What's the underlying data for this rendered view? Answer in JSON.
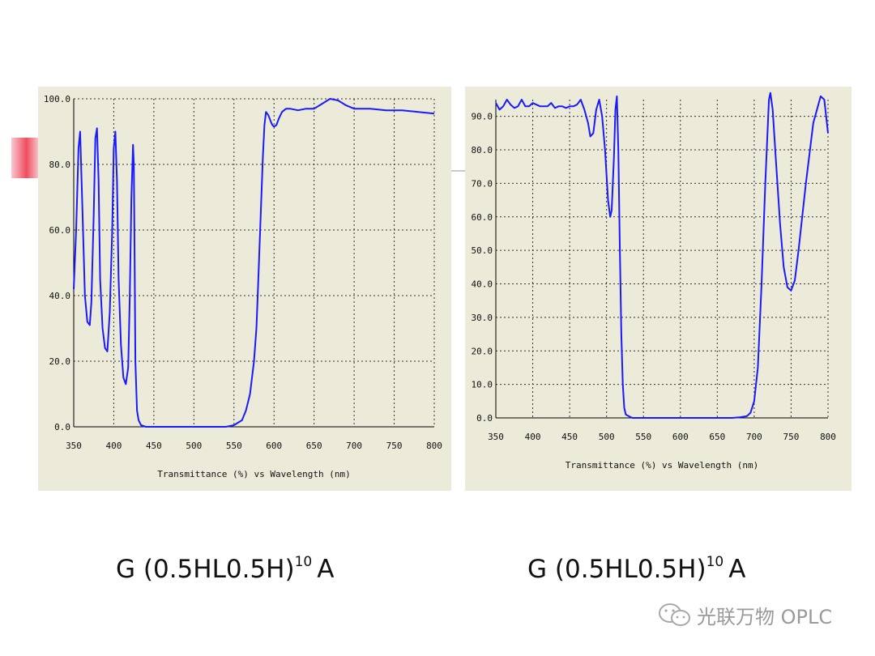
{
  "captions": {
    "left": {
      "main": "G (0.5HL0.5H)",
      "sup": "10",
      "tail": "A"
    },
    "right": {
      "main": "G (0.5HL0.5H)",
      "sup": "10",
      "tail": "A"
    }
  },
  "watermark": {
    "text": "光联万物 OPLC",
    "icon": "wechat-icon"
  },
  "chart_data": [
    {
      "type": "line",
      "xlabel": "Transmittance (%)  vs  Wavelength (nm)",
      "ylabel": "",
      "xlim": [
        350,
        800
      ],
      "ylim": [
        0,
        100
      ],
      "x_ticks": [
        "350",
        "400",
        "450",
        "500",
        "550",
        "600",
        "650",
        "700",
        "750",
        "800"
      ],
      "y_ticks": [
        "0.0",
        "20.0",
        "40.0",
        "60.0",
        "80.0",
        "100.0"
      ],
      "grid": true,
      "line_color": "#1a1aff",
      "series": [
        {
          "x": [
            350,
            353,
            356,
            358,
            361,
            364,
            367,
            370,
            372,
            375,
            377,
            379,
            381,
            383,
            386,
            389,
            392,
            395,
            398,
            400,
            402,
            404,
            406,
            409,
            412,
            415,
            418,
            420,
            422,
            424,
            425,
            426,
            427,
            429,
            431,
            434,
            440,
            450,
            500,
            540,
            550,
            560,
            565,
            570,
            575,
            578,
            580,
            583,
            586,
            588,
            590,
            593,
            596,
            598,
            600,
            603,
            606,
            610,
            615,
            620,
            630,
            640,
            650,
            660,
            670,
            680,
            690,
            700,
            720,
            740,
            760,
            780,
            800
          ],
          "y": [
            42,
            60,
            85,
            90,
            65,
            40,
            32,
            31,
            38,
            65,
            88,
            91,
            75,
            45,
            30,
            24,
            23,
            35,
            60,
            85,
            90,
            75,
            45,
            25,
            15,
            13,
            18,
            40,
            70,
            86,
            80,
            50,
            20,
            5,
            2,
            0.5,
            0,
            0,
            0,
            0,
            0.5,
            2,
            5,
            10,
            20,
            30,
            42,
            62,
            82,
            92,
            96,
            95,
            93,
            92,
            91.5,
            92,
            94,
            96,
            97,
            97,
            96.5,
            97,
            97,
            98.5,
            100,
            99.5,
            98,
            97,
            97,
            96.5,
            96.5,
            96,
            95.5
          ]
        }
      ]
    },
    {
      "type": "line",
      "xlabel": "Transmittance (%)  vs  Wavelength (nm)",
      "ylabel": "",
      "xlim": [
        350,
        800
      ],
      "ylim": [
        0,
        95
      ],
      "x_ticks": [
        "350",
        "400",
        "450",
        "500",
        "550",
        "600",
        "650",
        "700",
        "750",
        "800"
      ],
      "y_ticks": [
        "0.0",
        "10.0",
        "20.0",
        "30.0",
        "40.0",
        "50.0",
        "60.0",
        "70.0",
        "80.0",
        "90.0"
      ],
      "grid": true,
      "line_color": "#1a1aff",
      "series": [
        {
          "x": [
            350,
            355,
            360,
            365,
            370,
            375,
            380,
            385,
            390,
            395,
            400,
            405,
            410,
            415,
            420,
            425,
            430,
            435,
            440,
            445,
            450,
            455,
            460,
            465,
            470,
            475,
            478,
            482,
            486,
            490,
            494,
            498,
            502,
            505,
            507,
            510,
            512,
            514,
            516,
            518,
            520,
            522,
            524,
            526,
            530,
            535,
            540,
            550,
            600,
            650,
            670,
            680,
            690,
            695,
            700,
            705,
            710,
            715,
            720,
            722,
            725,
            730,
            735,
            740,
            745,
            750,
            755,
            760,
            770,
            780,
            790,
            795,
            800
          ],
          "y": [
            94,
            92,
            93,
            95,
            93.5,
            92.5,
            93,
            95,
            93,
            93,
            94,
            93.5,
            93,
            93,
            93,
            94,
            92.5,
            93,
            93,
            92.5,
            93,
            93,
            93.5,
            95,
            92,
            88,
            84,
            85,
            92,
            95,
            90,
            80,
            65,
            60,
            62,
            78,
            92,
            96,
            80,
            50,
            25,
            10,
            3,
            1,
            0.5,
            0,
            0,
            0,
            0,
            0,
            0,
            0.2,
            0.5,
            1.5,
            5,
            15,
            40,
            70,
            95,
            97,
            92,
            75,
            58,
            45,
            39,
            38,
            41,
            50,
            70,
            88,
            96,
            95,
            85
          ]
        }
      ]
    }
  ]
}
